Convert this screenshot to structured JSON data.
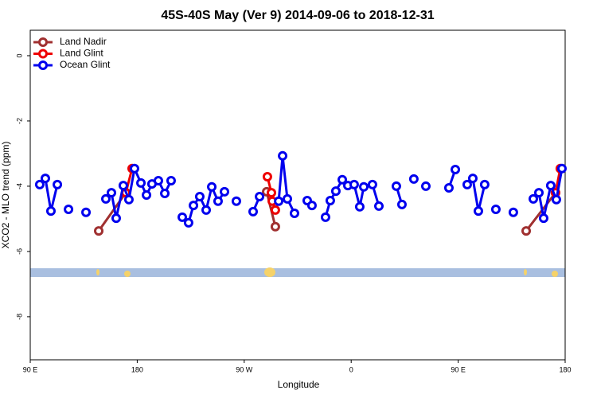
{
  "chart_data": {
    "type": "line",
    "title": "45S-40S May (Ver 9)   2014-09-06 to 2018-12-31",
    "x_label": "Longitude",
    "y_label": "XCO2 - MLO trend (ppm)",
    "xlim": [
      90,
      540
    ],
    "xticks": [
      {
        "value": 90,
        "label": "90 E"
      },
      180,
      {
        "value": 270,
        "label": "90 W"
      },
      {
        "value": 360,
        "label": "0"
      },
      {
        "value": 450,
        "label": "90 E"
      },
      {
        "value": 540,
        "label": "180"
      }
    ],
    "ylim": [
      -9.32,
      0.78
    ],
    "yticks": [
      0,
      -2,
      -4,
      -6,
      -8
    ],
    "legend": "top-left",
    "series": [
      {
        "name": "Land Nadir",
        "color": "#a03030",
        "x": [
          147.6,
          170.4,
          null,
          288.9,
          296.2,
          null,
          507.2,
          531.9
        ],
        "values": [
          -5.37,
          -4.2,
          null,
          -4.17,
          -5.24,
          null,
          -5.37,
          -4.2
        ]
      },
      {
        "name": "Land Glint",
        "color": "#ee0000",
        "x": [
          170.4,
          175.7,
          null,
          289.5,
          292.9,
          293.6,
          296.2,
          null,
          531.9,
          535.9
        ],
        "values": [
          -4.2,
          -3.46,
          null,
          -3.71,
          -4.2,
          -4.46,
          -4.73,
          null,
          -4.2,
          -3.46
        ]
      },
      {
        "name": "Ocean Glint",
        "color": "#0000ee",
        "x": [
          98.0,
          102.7,
          107.4,
          112.8,
          null,
          122.2,
          null,
          136.9,
          null,
          153.6,
          158.3,
          162.3,
          168.3,
          173.0,
          177.7,
          183.1,
          187.8,
          192.4,
          197.8,
          203.2,
          208.5,
          null,
          217.9,
          223.2,
          227.3,
          232.6,
          238.0,
          242.7,
          248.0,
          253.4,
          null,
          263.4,
          null,
          277.5,
          282.9,
          null,
          299.0,
          302.3,
          306.3,
          312.3,
          null,
          323.0,
          327.0,
          null,
          338.4,
          342.4,
          347.1,
          352.5,
          357.2,
          362.5,
          367.2,
          370.6,
          377.9,
          383.3,
          null,
          398.0,
          402.7,
          null,
          412.7,
          null,
          422.8,
          null,
          442.2,
          447.6,
          null,
          457.6,
          462.3,
          467.0,
          472.3,
          null,
          481.7,
          null,
          496.4,
          null,
          513.2,
          517.9,
          521.9,
          527.9,
          532.6,
          537.3
        ],
        "values": [
          -3.95,
          -3.76,
          -4.76,
          -3.95,
          null,
          -4.71,
          null,
          -4.8,
          null,
          -4.39,
          -4.2,
          -4.98,
          -3.98,
          -4.41,
          -3.46,
          -3.9,
          -4.27,
          -3.93,
          -3.83,
          -4.22,
          -3.83,
          null,
          -4.95,
          -5.12,
          -4.59,
          -4.32,
          -4.73,
          -4.02,
          -4.46,
          -4.17,
          null,
          -4.46,
          null,
          -4.78,
          -4.32,
          null,
          -4.46,
          -3.07,
          -4.39,
          -4.83,
          null,
          -4.44,
          -4.59,
          null,
          -4.95,
          -4.44,
          -4.15,
          -3.8,
          -3.98,
          -3.95,
          -4.63,
          -4.02,
          -3.95,
          -4.61,
          null,
          -4.0,
          -4.56,
          null,
          -3.78,
          null,
          -4.0,
          null,
          -4.05,
          -3.49,
          null,
          -3.95,
          -3.76,
          -4.76,
          -3.95,
          null,
          -4.71,
          null,
          -4.8,
          null,
          -4.39,
          -4.2,
          -4.98,
          -3.98,
          -4.41,
          -3.46
        ]
      }
    ]
  }
}
